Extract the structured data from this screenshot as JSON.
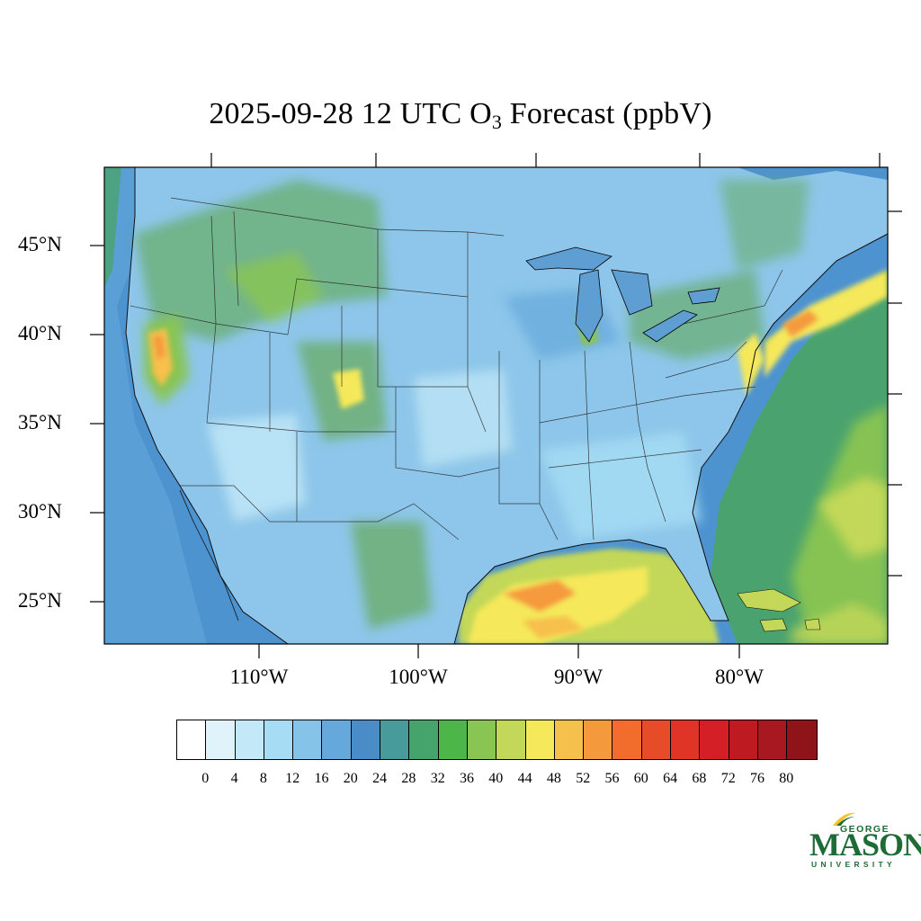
{
  "title": {
    "prefix": "2025-09-28 12 UTC O",
    "subscript": "3",
    "suffix": " Forecast (ppbV)"
  },
  "map": {
    "region": "Continental United States",
    "projection": "lambert-conformal",
    "variable": "O3",
    "units": "ppbV",
    "background_value_color": "#5ea3d8",
    "lat_labels": [
      "45°N",
      "40°N",
      "35°N",
      "30°N",
      "25°N"
    ],
    "lon_labels": [
      "110°W",
      "100°W",
      "90°W",
      "80°W"
    ],
    "highlights": [
      {
        "name": "Northern California Sierra",
        "value_range": [
          44,
          56
        ]
      },
      {
        "name": "Colorado Front Range",
        "value_range": [
          40,
          48
        ]
      },
      {
        "name": "Northeast coastal plume",
        "value_range": [
          44,
          56
        ]
      },
      {
        "name": "Gulf of Mexico",
        "value_range": [
          44,
          60
        ]
      },
      {
        "name": "Atlantic offshore",
        "value_range": [
          32,
          44
        ]
      }
    ]
  },
  "colorbar": {
    "colors": [
      "#ffffff",
      "#e0f3fb",
      "#c3e8f7",
      "#a6dcf4",
      "#86c3e8",
      "#64a8dc",
      "#4a8cc8",
      "#489b9b",
      "#45a46c",
      "#4cb648",
      "#88c552",
      "#c3d858",
      "#f5e85a",
      "#f6c04c",
      "#f59a3c",
      "#f26c2c",
      "#e64c28",
      "#e03526",
      "#d41f26",
      "#bd1a22",
      "#a71820",
      "#8e141a"
    ],
    "tick_labels": [
      "0",
      "4",
      "8",
      "12",
      "16",
      "20",
      "24",
      "28",
      "32",
      "36",
      "40",
      "44",
      "48",
      "52",
      "56",
      "60",
      "64",
      "68",
      "72",
      "76",
      "80"
    ]
  },
  "logo": {
    "line1": "GEORGE",
    "line2": "MASON",
    "line3": "UNIVERSITY",
    "color": "#1d6b35",
    "accent": "#f2c230"
  }
}
